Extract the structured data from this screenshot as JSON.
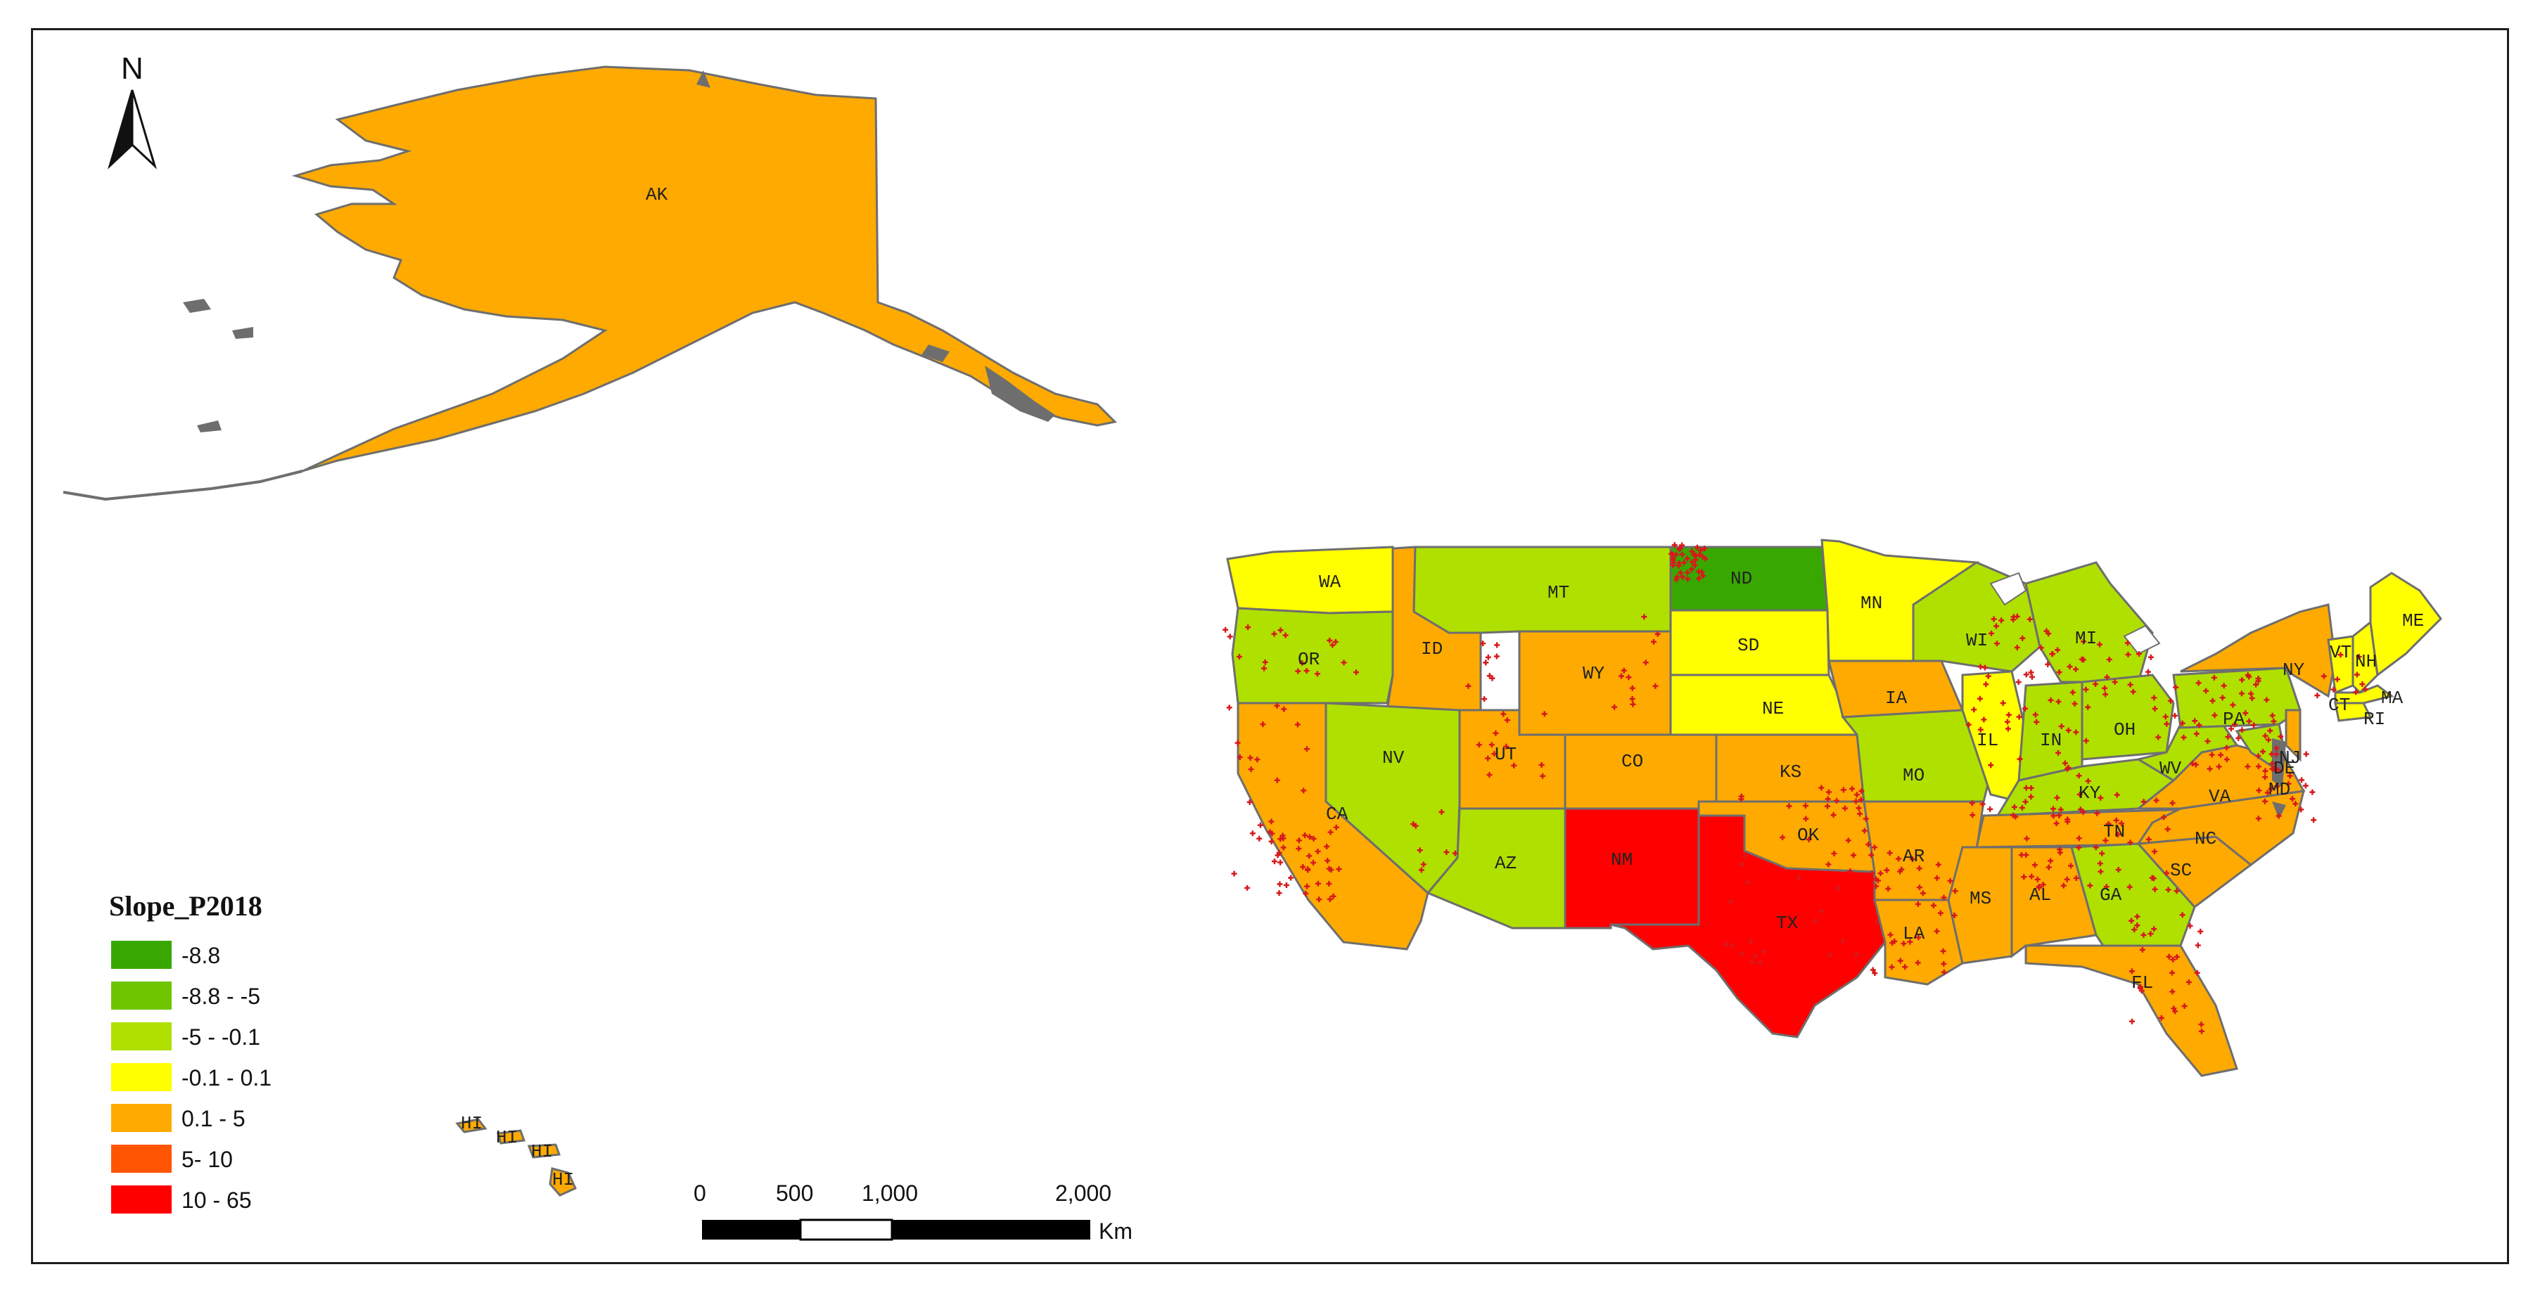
{
  "legend": {
    "title": "Slope_P2018",
    "classes": [
      {
        "label": "-8.8",
        "color": "#38a800"
      },
      {
        "label": "-8.8 - -5",
        "color": "#6fc400"
      },
      {
        "label": "-5 - -0.1",
        "color": "#b0e000"
      },
      {
        "label": "-0.1 - 0.1",
        "color": "#ffff00"
      },
      {
        "label": "0.1 - 5",
        "color": "#ffaa00"
      },
      {
        "label": "5- 10",
        "color": "#ff5500"
      },
      {
        "label": "10 - 65",
        "color": "#ff0000"
      }
    ]
  },
  "north_arrow": {
    "letter": "N"
  },
  "scale_bar": {
    "ticks": [
      "0",
      "500",
      "1,000",
      "2,000"
    ],
    "unit": "Km"
  },
  "point_color": "#d7191c",
  "outline_color": "#6e6e6e",
  "state_labels": {
    "AK": "AK",
    "WA": "WA",
    "OR": "OR",
    "CA": "CA",
    "ID": "ID",
    "NV": "NV",
    "MT": "MT",
    "WY": "WY",
    "UT": "UT",
    "AZ": "AZ",
    "CO": "CO",
    "NM": "NM",
    "ND": "ND",
    "SD": "SD",
    "NE": "NE",
    "KS": "KS",
    "OK": "OK",
    "TX": "TX",
    "MN": "MN",
    "IA": "IA",
    "MO": "MO",
    "AR": "AR",
    "LA": "LA",
    "WI": "WI",
    "IL": "IL",
    "MI": "MI",
    "IN": "IN",
    "OH": "OH",
    "KY": "KY",
    "TN": "TN",
    "MS": "MS",
    "AL": "AL",
    "GA": "GA",
    "FL": "FL",
    "SC": "SC",
    "NC": "NC",
    "VA": "VA",
    "WV": "WV",
    "PA": "PA",
    "NY": "NY",
    "VT": "VT",
    "NH": "NH",
    "ME": "ME",
    "MA": "MA",
    "RI": "RI",
    "CT": "CT",
    "NJ": "NJ",
    "DE": "DE",
    "MD": "MD",
    "HI1": "HI",
    "HI2": "HI",
    "HI3": "HI",
    "HI4": "HI"
  }
}
